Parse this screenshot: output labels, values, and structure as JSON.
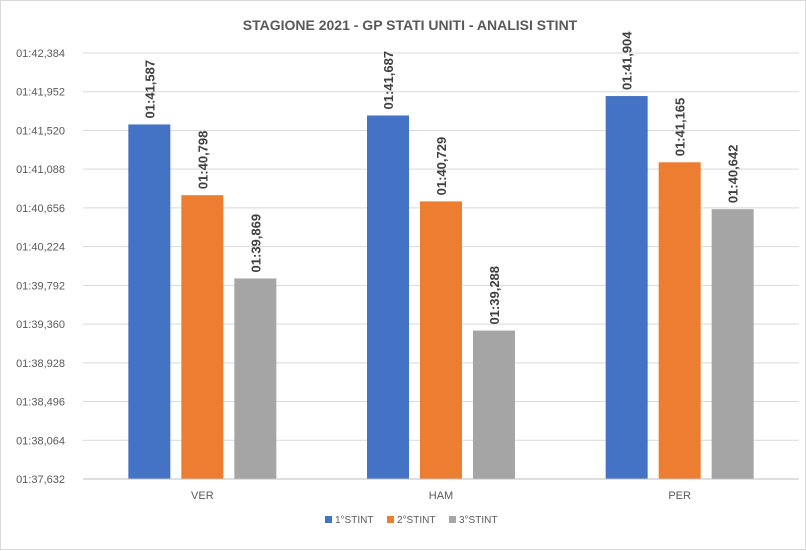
{
  "chart_data": {
    "type": "bar",
    "title": "STAGIONE 2021 - GP STATI UNITI -  ANALISI STINT",
    "xlabel": "",
    "ylabel": "",
    "categories": [
      "VER",
      "HAM",
      "PER"
    ],
    "y_ticks": [
      "01:37,632",
      "01:38,064",
      "01:38,496",
      "01:38,928",
      "01:39,360",
      "01:39,792",
      "01:40,224",
      "01:40,656",
      "01:41,088",
      "01:41,520",
      "01:41,952",
      "01:42,384"
    ],
    "y_tick_seconds": [
      97.632,
      98.064,
      98.496,
      98.928,
      99.36,
      99.792,
      100.224,
      100.656,
      101.088,
      101.52,
      101.952,
      102.384
    ],
    "ylim": [
      97.632,
      102.384
    ],
    "grid": true,
    "legend_position": "bottom",
    "series": [
      {
        "name": "1°STINT",
        "color": "#4472C4",
        "values": [
          101.587,
          101.687,
          101.904
        ],
        "labels": [
          "01:41,587",
          "01:41,687",
          "01:41,904"
        ]
      },
      {
        "name": "2°STINT",
        "color": "#ED7D31",
        "values": [
          100.798,
          100.729,
          101.165
        ],
        "labels": [
          "01:40,798",
          "01:40,729",
          "01:41,165"
        ]
      },
      {
        "name": "3°STINT",
        "color": "#A5A5A5",
        "values": [
          99.869,
          99.288,
          100.642
        ],
        "labels": [
          "01:39,869",
          "01:39,288",
          "01:40,642"
        ]
      }
    ]
  }
}
